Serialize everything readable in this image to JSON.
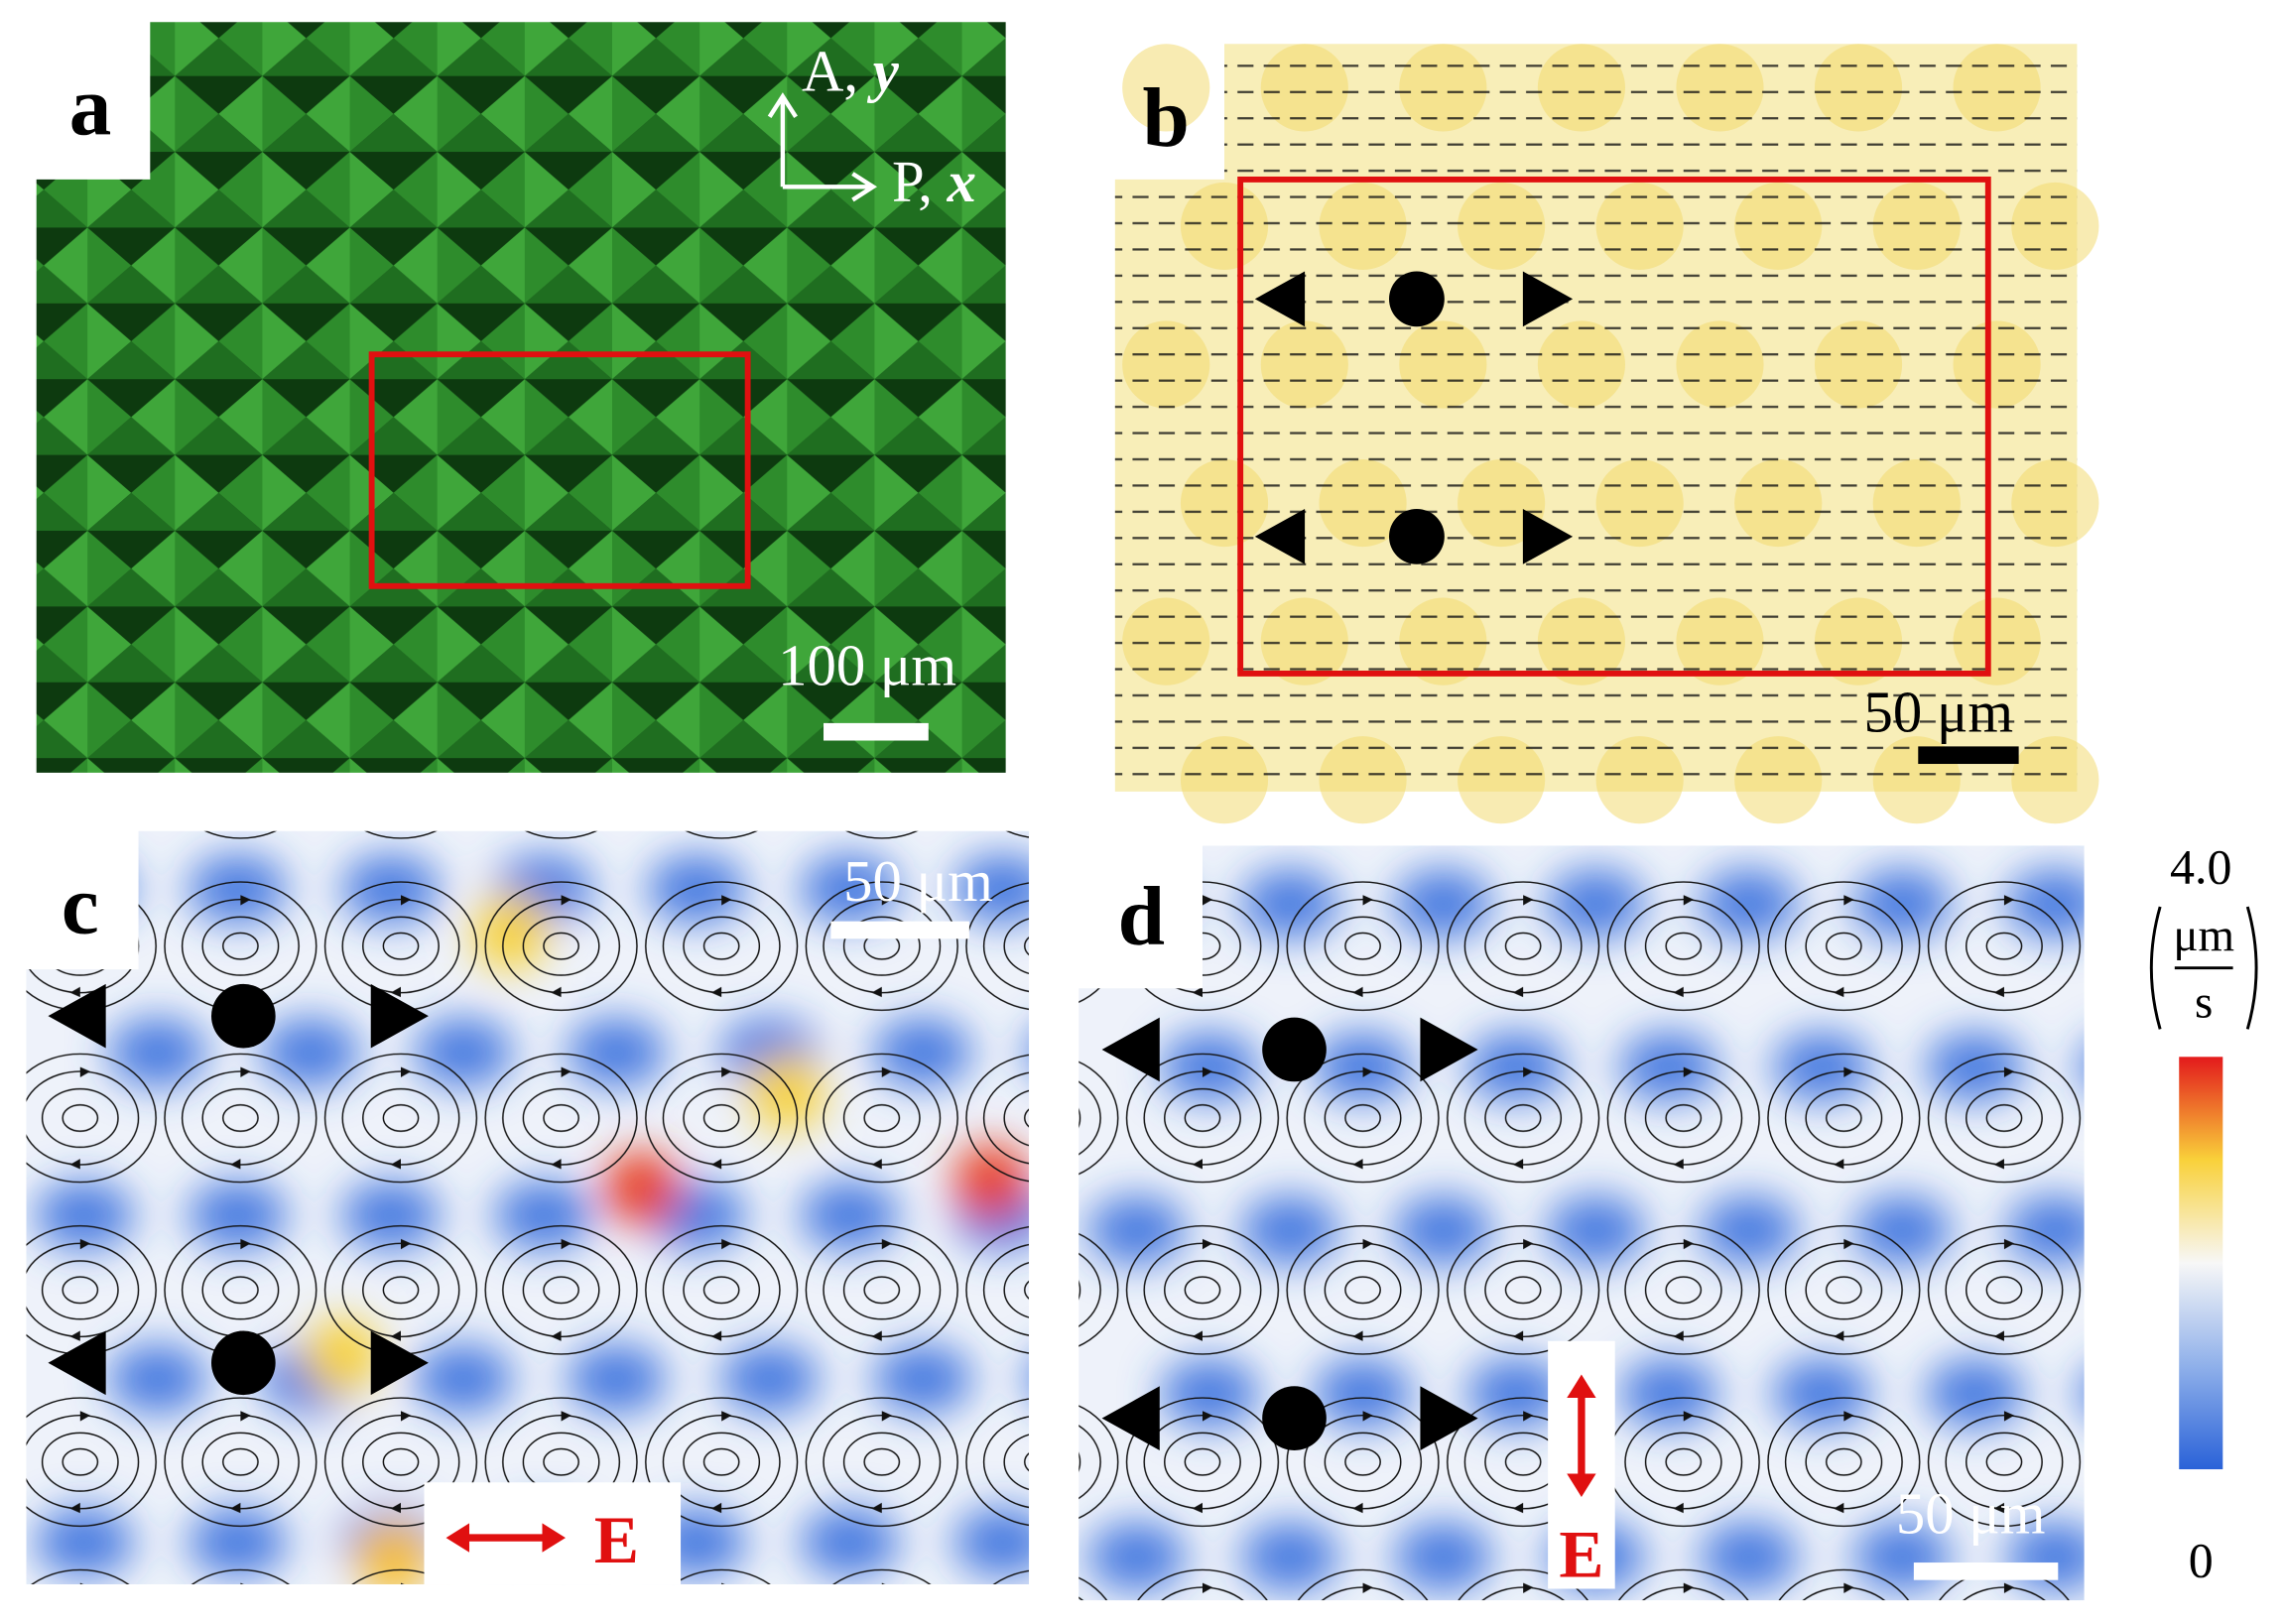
{
  "panels": [
    {
      "label": "a",
      "analyzer": "A,",
      "analyzer_axis": "y",
      "polarizer": "P,",
      "polarizer_axis": "x",
      "scale_bar": "100 μm"
    },
    {
      "label": "b",
      "scale_bar": "50 μm"
    },
    {
      "label": "c",
      "scale_bar": "50 μm",
      "field_label": "E"
    },
    {
      "label": "d",
      "scale_bar": "50 μm",
      "field_label": "E"
    }
  ],
  "colorbar": {
    "max": "4.0",
    "unit_numerator": "μm",
    "unit_denominator": "s",
    "min": "0"
  }
}
